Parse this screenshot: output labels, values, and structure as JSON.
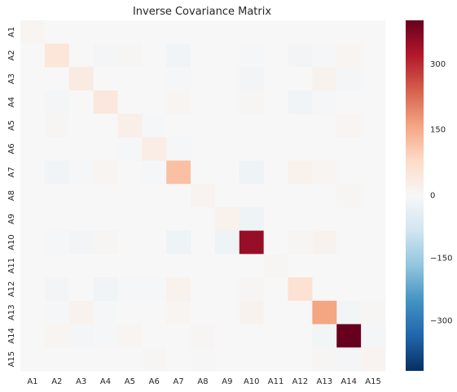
{
  "chart_data": {
    "type": "heatmap",
    "title": "Inverse Covariance Matrix",
    "xlabel": "",
    "ylabel": "",
    "rows": [
      "A1",
      "A2",
      "A3",
      "A4",
      "A5",
      "A6",
      "A7",
      "A8",
      "A9",
      "A10",
      "A11",
      "A12",
      "A13",
      "A14",
      "A15"
    ],
    "cols": [
      "A1",
      "A2",
      "A3",
      "A4",
      "A5",
      "A6",
      "A7",
      "A8",
      "A9",
      "A10",
      "A11",
      "A12",
      "A13",
      "A14",
      "A15"
    ],
    "values": [
      [
        8,
        0,
        0,
        0,
        0,
        0,
        0,
        0,
        0,
        0,
        0,
        0,
        0,
        0,
        0
      ],
      [
        0,
        50,
        0,
        -8,
        5,
        0,
        -15,
        0,
        0,
        -5,
        0,
        -12,
        -4,
        10,
        0
      ],
      [
        0,
        0,
        35,
        0,
        0,
        0,
        -5,
        0,
        0,
        -12,
        0,
        0,
        15,
        -8,
        0
      ],
      [
        0,
        -8,
        0,
        42,
        0,
        0,
        8,
        0,
        0,
        6,
        0,
        -15,
        -5,
        0,
        0
      ],
      [
        0,
        5,
        0,
        0,
        25,
        -5,
        0,
        0,
        0,
        0,
        0,
        0,
        0,
        8,
        0
      ],
      [
        0,
        0,
        0,
        0,
        -5,
        30,
        -4,
        0,
        0,
        0,
        0,
        0,
        0,
        0,
        0
      ],
      [
        0,
        -15,
        -5,
        8,
        0,
        -4,
        120,
        0,
        0,
        -20,
        0,
        18,
        8,
        0,
        0
      ],
      [
        0,
        0,
        0,
        0,
        0,
        0,
        0,
        12,
        0,
        0,
        0,
        0,
        0,
        5,
        0
      ],
      [
        0,
        0,
        0,
        0,
        0,
        0,
        0,
        0,
        18,
        -20,
        0,
        0,
        0,
        0,
        0
      ],
      [
        0,
        -5,
        -12,
        6,
        0,
        0,
        -20,
        0,
        -20,
        350,
        0,
        6,
        15,
        0,
        0
      ],
      [
        0,
        0,
        0,
        0,
        0,
        0,
        0,
        0,
        0,
        0,
        5,
        0,
        0,
        0,
        0
      ],
      [
        0,
        -12,
        0,
        -15,
        -4,
        -4,
        18,
        0,
        0,
        6,
        0,
        60,
        0,
        0,
        0
      ],
      [
        0,
        -4,
        15,
        -5,
        0,
        0,
        8,
        0,
        0,
        15,
        0,
        0,
        160,
        -10,
        5
      ],
      [
        0,
        10,
        -8,
        -4,
        8,
        0,
        0,
        5,
        0,
        0,
        0,
        0,
        -10,
        400,
        -8
      ],
      [
        0,
        0,
        0,
        0,
        0,
        5,
        0,
        -3,
        0,
        0,
        0,
        0,
        5,
        -8,
        12
      ]
    ],
    "vmin": -420,
    "vmax": 400,
    "colormap": "RdBu_r",
    "colorbar_ticks": [
      300,
      150,
      0,
      -150,
      -300
    ],
    "colorbar_tick_labels": [
      "300",
      "150",
      "0",
      "−150",
      "−300"
    ],
    "grid": false
  }
}
